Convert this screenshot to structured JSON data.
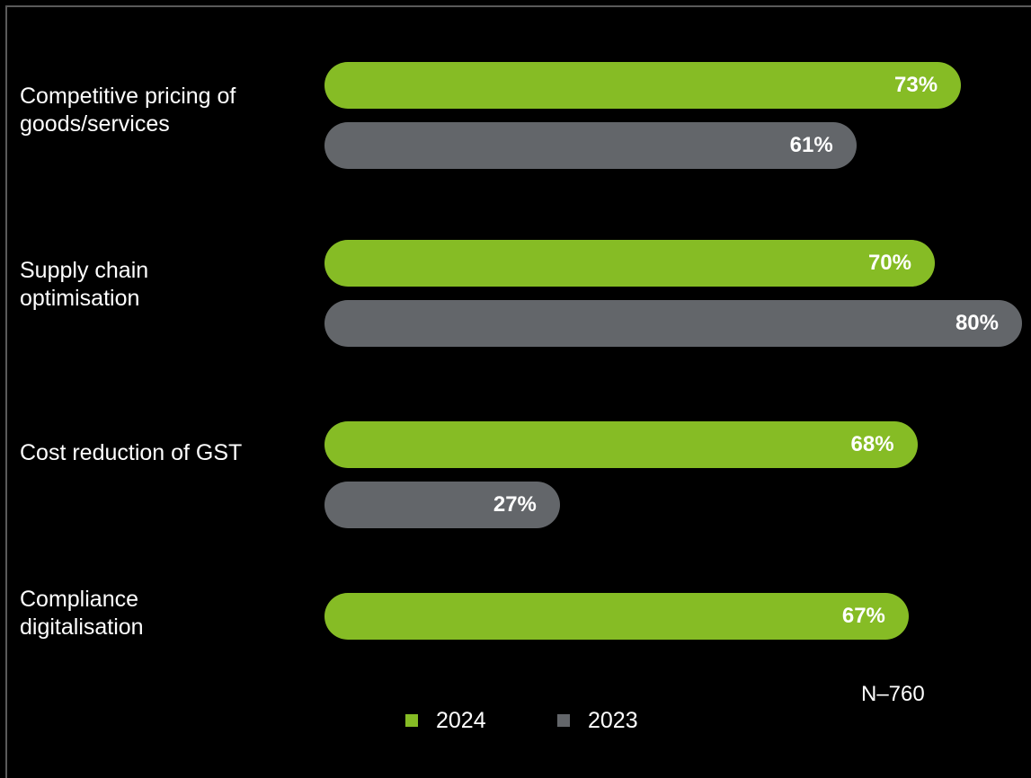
{
  "chart_data": {
    "type": "bar",
    "orientation": "horizontal",
    "categories": [
      "Competitive pricing of\ngoods/services",
      "Supply chain\noptimisation",
      "Cost reduction of GST",
      "Compliance\ndigitalisation"
    ],
    "series": [
      {
        "name": "2024",
        "color": "#86bc25",
        "values": [
          73,
          70,
          68,
          67
        ],
        "labels": [
          "73%",
          "70%",
          "68%",
          "67%"
        ]
      },
      {
        "name": "2023",
        "color": "#63666a",
        "values": [
          61,
          80,
          27,
          null
        ],
        "labels": [
          "61%",
          "80%",
          "27%",
          null
        ]
      }
    ],
    "unit": "%",
    "xlim": [
      0,
      80
    ],
    "grid": false,
    "legend_position": "bottom"
  },
  "note": "N–760"
}
